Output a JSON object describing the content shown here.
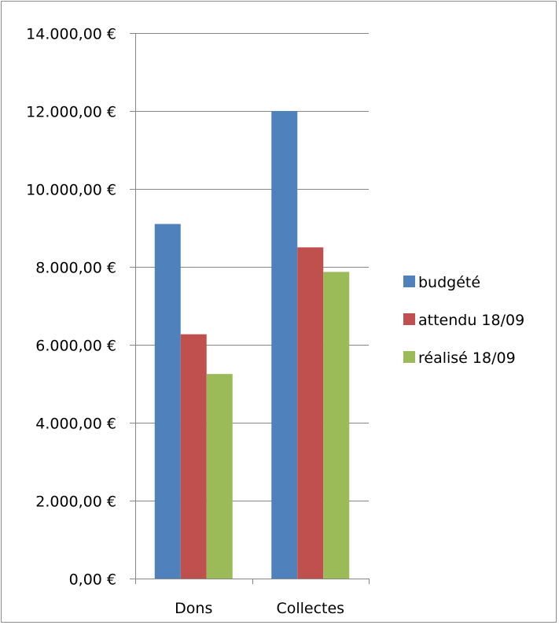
{
  "chart_data": {
    "type": "bar",
    "categories": [
      "Dons",
      "Collectes"
    ],
    "series": [
      {
        "name": "budgété",
        "values": [
          9100,
          12000
        ],
        "color": "#4f81bd"
      },
      {
        "name": "attendu 18/09",
        "values": [
          6270,
          8500
        ],
        "color": "#c0504d"
      },
      {
        "name": "réalisé 18/09",
        "values": [
          5250,
          7870
        ],
        "color": "#9bbb59"
      }
    ],
    "ylim": [
      0,
      14000
    ],
    "yticks": [
      0,
      2000,
      4000,
      6000,
      8000,
      10000,
      12000,
      14000
    ],
    "ytick_labels": [
      "0,00 €",
      "2.000,00 €",
      "4.000,00 €",
      "6.000,00 €",
      "8.000,00 €",
      "10.000,00 €",
      "12.000,00 €",
      "14.000,00 €"
    ],
    "grid": true,
    "legend_position": "right",
    "title": "",
    "xlabel": "",
    "ylabel": ""
  }
}
